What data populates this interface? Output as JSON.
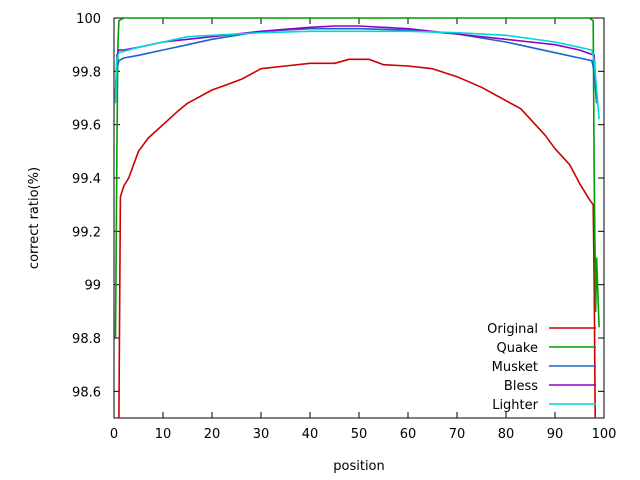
{
  "chart_data": {
    "type": "line",
    "title": "",
    "xlabel": "position",
    "ylabel": "correct ratio(%)",
    "xlim": [
      0,
      100
    ],
    "ylim": [
      98.5,
      100
    ],
    "x_ticks": [
      0,
      10,
      20,
      30,
      40,
      50,
      60,
      70,
      80,
      90,
      100
    ],
    "y_ticks": [
      98.6,
      98.8,
      99,
      99.2,
      99.4,
      99.6,
      99.8,
      100
    ],
    "x_tick_labels": [
      "0",
      "10",
      "20",
      "30",
      "40",
      "50",
      "60",
      "70",
      "80",
      "90",
      "100"
    ],
    "y_tick_labels": [
      "98.6",
      "98.8",
      "99",
      "99.2",
      "99.4",
      "99.6",
      "99.8",
      "100"
    ],
    "grid": false,
    "legend_position": "bottom-right",
    "series": [
      {
        "name": "Original",
        "color": "#cc0000",
        "x": [
          1,
          1.3,
          2,
          3,
          4,
          5,
          7,
          10,
          13,
          15,
          18,
          20,
          23,
          26,
          30,
          35,
          40,
          45,
          48,
          52,
          55,
          60,
          65,
          70,
          75,
          80,
          83,
          85,
          88,
          90,
          93,
          95,
          97,
          97.8,
          98,
          98.2
        ],
        "y": [
          98.5,
          99.33,
          99.37,
          99.4,
          99.45,
          99.5,
          99.55,
          99.6,
          99.65,
          99.68,
          99.71,
          99.73,
          99.75,
          99.77,
          99.81,
          99.82,
          99.83,
          99.83,
          99.845,
          99.845,
          99.825,
          99.82,
          99.81,
          99.78,
          99.74,
          99.69,
          99.66,
          99.62,
          99.56,
          99.51,
          99.45,
          99.38,
          99.32,
          99.3,
          99.0,
          98.5
        ]
      },
      {
        "name": "Quake",
        "color": "#00a000",
        "x": [
          0.3,
          0.4,
          0.6,
          0.8,
          1,
          1.5,
          2,
          50,
          97,
          97.8,
          98,
          98.3,
          98.5,
          99
        ],
        "y": [
          98.8,
          99.05,
          99.5,
          99.9,
          99.99,
          99.995,
          100,
          100,
          100,
          99.99,
          99.4,
          98.9,
          99.1,
          98.84
        ]
      },
      {
        "name": "Musket",
        "color": "#1e64c8",
        "x": [
          0.3,
          0.5,
          1,
          2,
          5,
          10,
          15,
          20,
          30,
          40,
          50,
          60,
          70,
          80,
          85,
          90,
          95,
          97.5,
          98,
          98.5
        ],
        "y": [
          99.72,
          99.8,
          99.84,
          99.85,
          99.86,
          99.88,
          99.9,
          99.92,
          99.95,
          99.96,
          99.96,
          99.955,
          99.94,
          99.91,
          99.89,
          99.87,
          99.85,
          99.84,
          99.8,
          99.68
        ]
      },
      {
        "name": "Bless",
        "color": "#9000c8",
        "x": [
          0.3,
          0.6,
          1,
          2,
          5,
          10,
          15,
          20,
          30,
          40,
          45,
          50,
          60,
          70,
          80,
          85,
          90,
          95,
          98,
          98.5
        ],
        "y": [
          99.7,
          99.86,
          99.88,
          99.88,
          99.89,
          99.91,
          99.92,
          99.93,
          99.95,
          99.965,
          99.97,
          99.97,
          99.96,
          99.94,
          99.92,
          99.91,
          99.9,
          99.88,
          99.86,
          99.7
        ]
      },
      {
        "name": "Lighter",
        "color": "#00d8d8",
        "x": [
          0.3,
          0.6,
          1,
          3,
          5,
          10,
          15,
          20,
          30,
          40,
          50,
          60,
          70,
          80,
          90,
          95,
          97.5,
          98,
          99
        ],
        "y": [
          99.68,
          99.85,
          99.87,
          99.88,
          99.89,
          99.91,
          99.93,
          99.935,
          99.945,
          99.95,
          99.95,
          99.95,
          99.945,
          99.935,
          99.91,
          99.89,
          99.88,
          99.84,
          99.62
        ]
      }
    ]
  }
}
